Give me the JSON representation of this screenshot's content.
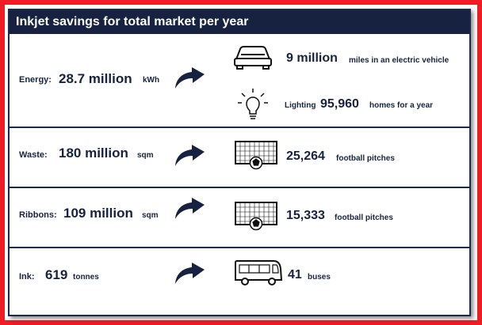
{
  "title": "Inkjet savings for total market per year",
  "rows": [
    {
      "label": "Energy:",
      "value": "28.7 million",
      "unit": "kWh",
      "equivalents": [
        {
          "icon": "car-icon",
          "number": "9 million",
          "text": "miles in an electric vehicle"
        },
        {
          "icon": "lightbulb-icon",
          "prefix": "Lighting",
          "number": "95,960",
          "text": "homes for a year"
        }
      ]
    },
    {
      "label": "Waste:",
      "value": "180 million",
      "unit": "sqm",
      "equivalents": [
        {
          "icon": "football-goal-icon",
          "number": "25,264",
          "text": "football pitches"
        }
      ]
    },
    {
      "label": "Ribbons:",
      "value": "109 million",
      "unit": "sqm",
      "equivalents": [
        {
          "icon": "football-goal-icon",
          "number": "15,333",
          "text": "football pitches"
        }
      ]
    },
    {
      "label": "Ink:",
      "value": "619",
      "unit": "tonnes",
      "equivalents": [
        {
          "icon": "bus-icon",
          "number": "41",
          "text": "buses"
        }
      ]
    }
  ],
  "colors": {
    "navy": "#16223f",
    "border": "#ee1c24"
  }
}
